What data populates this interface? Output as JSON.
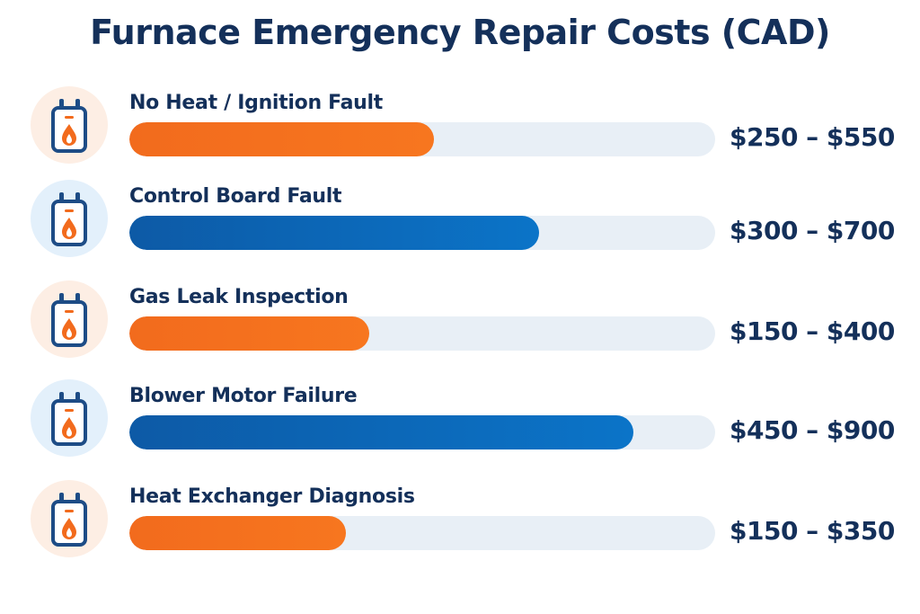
{
  "chart_data": {
    "type": "bar",
    "orientation": "horizontal",
    "title": "Furnace Emergency Repair Costs (CAD)",
    "categories": [
      "No Heat / Ignition Fault",
      "Control Board Fault",
      "Gas Leak Inspection",
      "Blower Motor Failure",
      "Heat Exchanger Diagnosis"
    ],
    "value_labels": [
      "$250 – $550",
      "$300 – $700",
      "$150 – $400",
      "$450 – $900",
      "$150 – $350"
    ],
    "fill_fraction": [
      0.52,
      0.7,
      0.41,
      0.86,
      0.37
    ],
    "bar_colors": [
      "#f26b1d",
      "#0b63b3",
      "#f26b1d",
      "#0b63b3",
      "#f26b1d"
    ],
    "icon": "furnace-flame-icon",
    "grid": false,
    "legend": "none"
  },
  "colors": {
    "orange": "#f26b1d",
    "blue": "#0b63b3",
    "navy": "#14305a",
    "track": "#e8eff6",
    "orange_bg": "#fdeee4",
    "blue_bg": "#e3f0fb"
  }
}
